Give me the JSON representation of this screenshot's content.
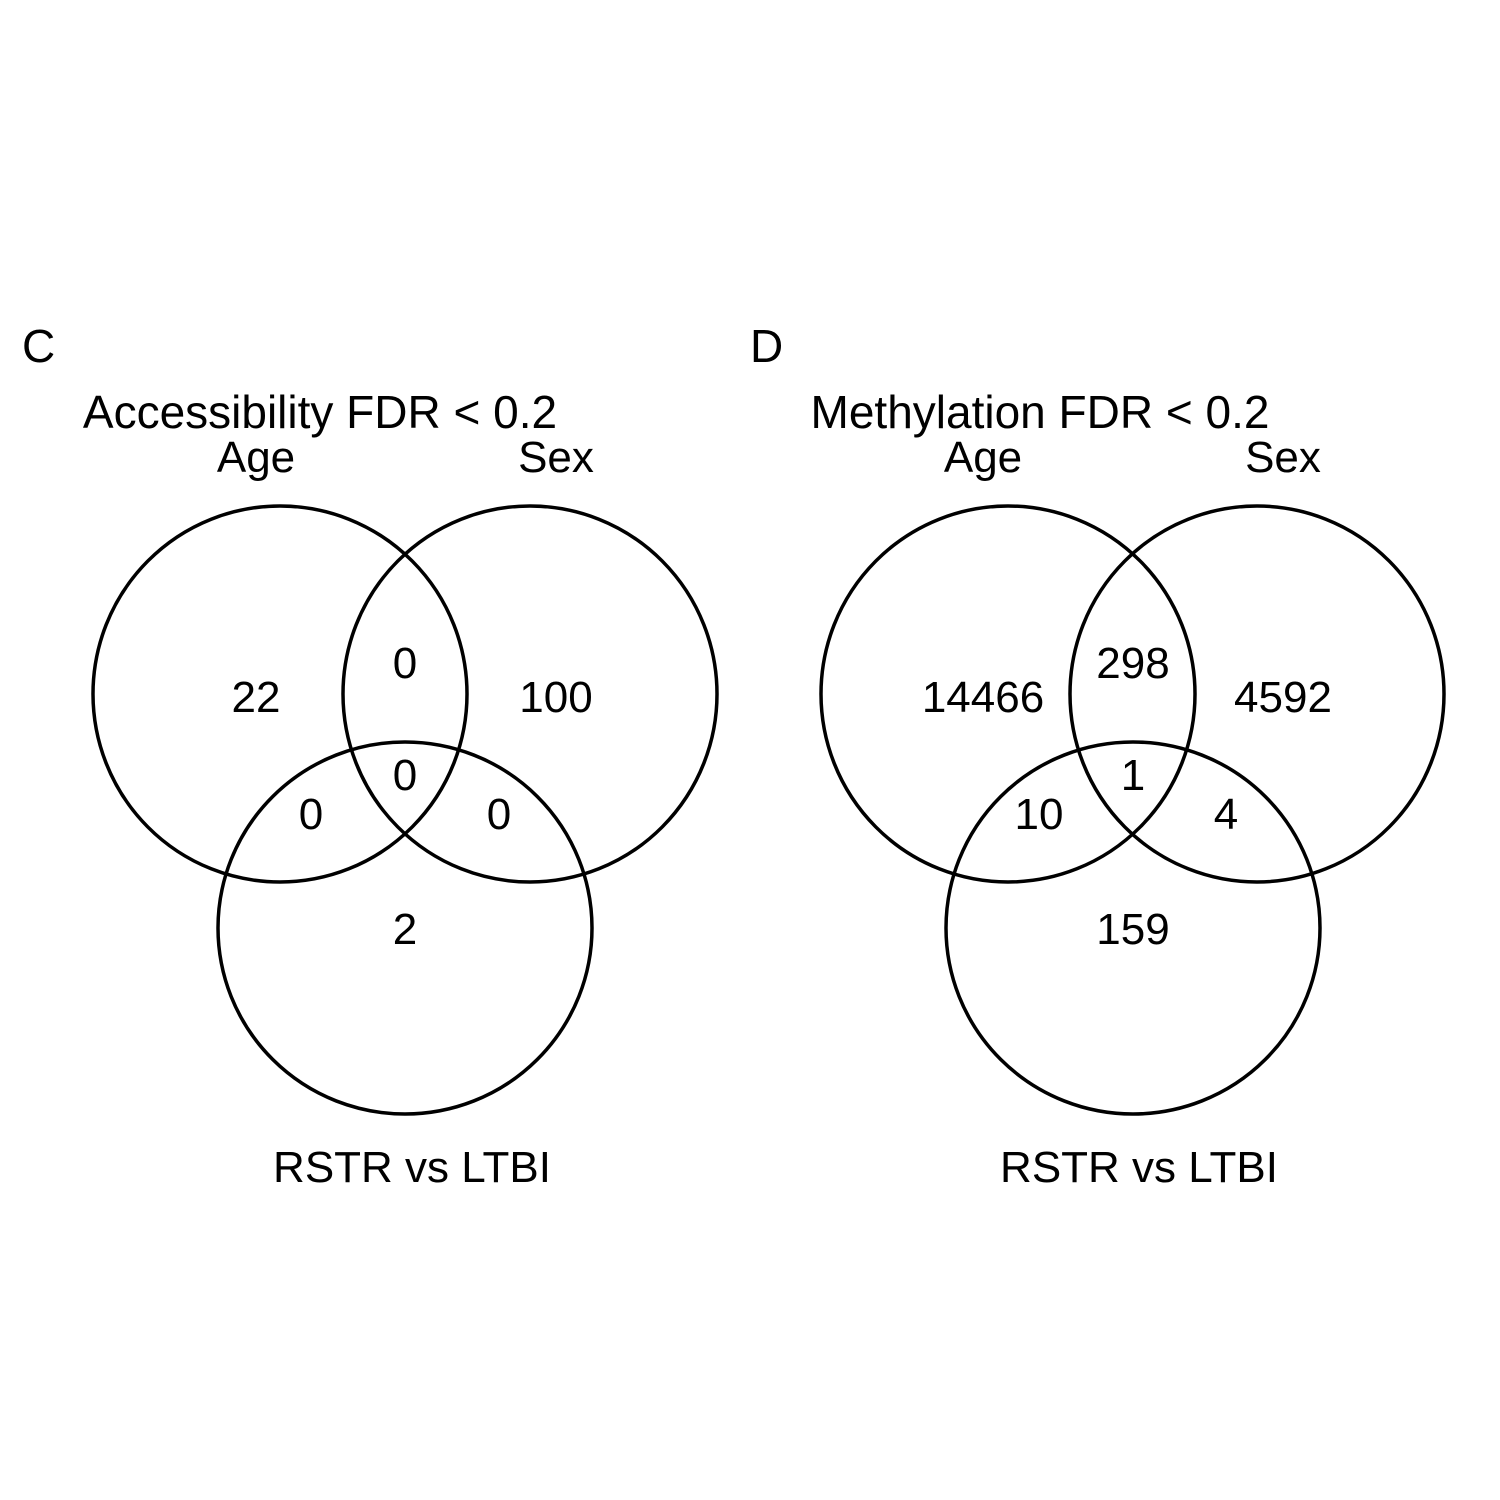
{
  "panels": [
    {
      "letter": "C",
      "title": "Accessibility FDR < 0.2",
      "sets": [
        "Age",
        "Sex",
        "RSTR vs LTBI"
      ],
      "counts": {
        "age_only": "22",
        "sex_only": "100",
        "rstr_only": "2",
        "age_sex": "0",
        "age_rstr": "0",
        "sex_rstr": "0",
        "all_three": "0"
      }
    },
    {
      "letter": "D",
      "title": "Methylation FDR < 0.2",
      "sets": [
        "Age",
        "Sex",
        "RSTR vs LTBI"
      ],
      "counts": {
        "age_only": "14466",
        "sex_only": "4592",
        "rstr_only": "159",
        "age_sex": "298",
        "age_rstr": "10",
        "sex_rstr": "4",
        "all_three": "1"
      }
    }
  ],
  "colors": {
    "stroke": "#000000",
    "text": "#000000",
    "background": "#ffffff"
  }
}
